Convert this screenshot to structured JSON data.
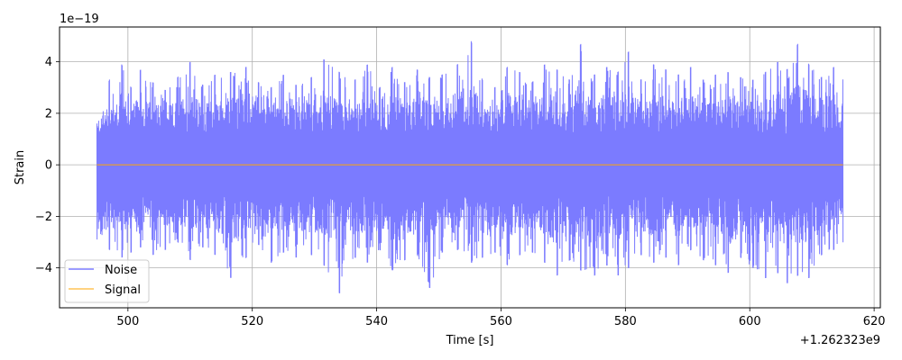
{
  "chart_data": {
    "type": "line",
    "xlabel": "Time [s]",
    "ylabel": "Strain",
    "x_offset_text": "+1.262323e9",
    "y_scale_text": "1e−19",
    "xlim": [
      489,
      621
    ],
    "ylim": [
      -5.55,
      5.35
    ],
    "x_ticks": [
      500,
      520,
      540,
      560,
      580,
      600,
      620
    ],
    "x_tick_labels": [
      "500",
      "520",
      "540",
      "560",
      "580",
      "600",
      "620"
    ],
    "y_ticks": [
      -4,
      -2,
      0,
      2,
      4
    ],
    "y_tick_labels": [
      "−4",
      "−2",
      "0",
      "2",
      "4"
    ],
    "grid": true,
    "legend_position": "lower-left",
    "series": [
      {
        "name": "Noise",
        "color": "#7b7bff",
        "x_start": 495,
        "x_end": 615,
        "envelope_x": [
          495,
          497,
          499,
          500.5,
          502,
          504,
          506,
          508,
          510,
          512,
          514,
          516.5,
          519,
          521,
          523,
          525,
          527,
          529.5,
          531.5,
          534,
          536.5,
          538.5,
          540.5,
          542.5,
          544.5,
          546.5,
          548.5,
          550.5,
          553,
          555.2,
          557,
          559,
          561,
          563,
          565,
          567,
          569,
          571,
          572.8,
          575,
          577,
          578.8,
          580.5,
          582.5,
          584.5,
          586.5,
          588.5,
          590.5,
          592.5,
          594.5,
          596.5,
          598.5,
          600.5,
          602.5,
          604.5,
          606,
          607.7,
          609.5,
          611.5,
          613.5,
          615
        ],
        "envelope_max": [
          1.6,
          3.3,
          3.9,
          3.0,
          3.7,
          3.2,
          2.9,
          3.4,
          4.0,
          3.1,
          3.5,
          3.6,
          3.8,
          3.2,
          3.0,
          3.5,
          3.1,
          3.4,
          4.1,
          3.6,
          3.3,
          3.9,
          3.0,
          3.8,
          3.2,
          3.7,
          3.4,
          3.5,
          3.9,
          4.8,
          3.3,
          3.0,
          3.8,
          3.6,
          3.2,
          3.9,
          3.7,
          3.3,
          4.7,
          3.5,
          3.8,
          3.6,
          4.4,
          3.3,
          3.9,
          3.7,
          3.5,
          3.8,
          3.3,
          3.5,
          3.6,
          3.4,
          3.3,
          3.6,
          4.0,
          3.7,
          4.7,
          3.9,
          3.4,
          3.8,
          3.3
        ],
        "envelope_min": [
          -2.9,
          -3.3,
          -3.6,
          -3.4,
          -3.2,
          -3.5,
          -3.3,
          -3.0,
          -3.7,
          -3.2,
          -3.5,
          -4.4,
          -3.6,
          -3.1,
          -3.8,
          -3.4,
          -3.6,
          -3.5,
          -3.9,
          -5.0,
          -3.6,
          -3.8,
          -3.3,
          -4.1,
          -3.7,
          -3.5,
          -4.8,
          -3.4,
          -3.3,
          -3.8,
          -3.6,
          -3.4,
          -3.9,
          -3.5,
          -3.4,
          -3.8,
          -4.3,
          -3.7,
          -4.1,
          -4.3,
          -3.9,
          -4.3,
          -4.0,
          -3.5,
          -3.8,
          -3.6,
          -3.9,
          -3.3,
          -3.7,
          -3.9,
          -4.2,
          -3.6,
          -4.0,
          -4.4,
          -4.2,
          -4.6,
          -4.3,
          -4.4,
          -3.5,
          -3.3,
          -3.0
        ]
      },
      {
        "name": "Signal",
        "color": "#ffa500",
        "x": [
          495,
          615
        ],
        "y": [
          0,
          0
        ]
      }
    ]
  }
}
